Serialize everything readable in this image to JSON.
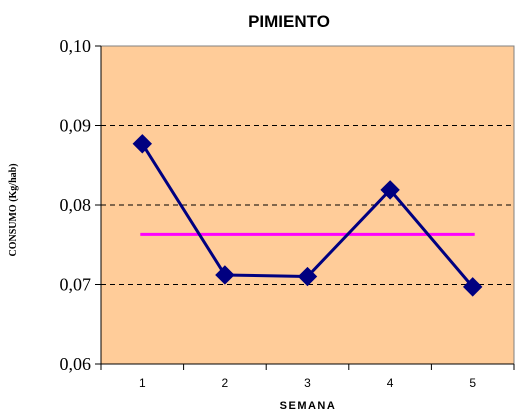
{
  "chart_data": {
    "type": "line",
    "title": "PIMIENTO",
    "xlabel": "SEMANA",
    "ylabel": "CONSUMO  (Kg/hab)",
    "categories": [
      "1",
      "2",
      "3",
      "4",
      "5"
    ],
    "x": [
      1,
      2,
      3,
      4,
      5
    ],
    "series": [
      {
        "values": [
          0.0877,
          0.0712,
          0.071,
          0.0819,
          0.0697
        ],
        "color": "#000080",
        "marker": "diamond"
      },
      {
        "values": [
          0.0763,
          0.0763,
          0.0763,
          0.0763,
          0.0763
        ],
        "color": "#ff00ff",
        "marker": "none"
      }
    ],
    "ylim": [
      0.06,
      0.1
    ],
    "yticks": [
      0.06,
      0.07,
      0.08,
      0.09,
      0.1
    ],
    "ytick_labels": [
      "0,06",
      "0,07",
      "0,08",
      "0,09",
      "0,10"
    ],
    "grid": "horizontal dashed",
    "legend": "none",
    "colors": {
      "plot_background": "#ffcc99",
      "main_series": "#000080",
      "average_line": "#ff00ff",
      "gridline": "#000000"
    }
  }
}
